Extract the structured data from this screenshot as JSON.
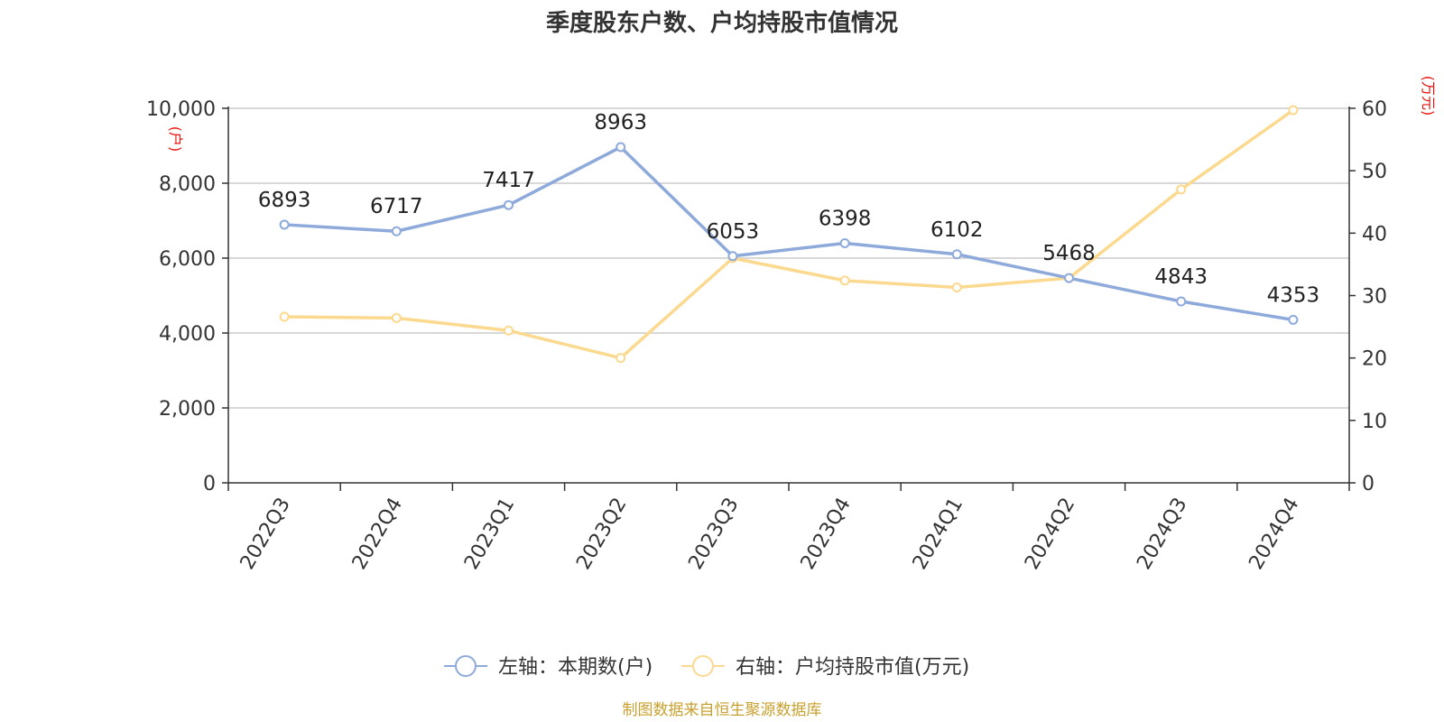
{
  "chart_data": {
    "type": "line",
    "title": "季度股东户数、户均持股市值情况",
    "categories": [
      "2022Q3",
      "2022Q4",
      "2023Q1",
      "2023Q2",
      "2023Q3",
      "2023Q4",
      "2024Q1",
      "2024Q2",
      "2024Q3",
      "2024Q4"
    ],
    "left_axis": {
      "unit": "(户)",
      "ylim": [
        0,
        10000
      ],
      "ticks": [
        "0",
        "2,000",
        "4,000",
        "6,000",
        "8,000",
        "10,000"
      ],
      "tick_values": [
        0,
        2000,
        4000,
        6000,
        8000,
        10000
      ]
    },
    "right_axis": {
      "unit": "(万元)",
      "ylim": [
        0,
        60
      ],
      "ticks": [
        "0",
        "10",
        "20",
        "30",
        "40",
        "50",
        "60"
      ],
      "tick_values": [
        0,
        10,
        20,
        30,
        40,
        50,
        60
      ]
    },
    "series": [
      {
        "name": "左轴：本期数(户)",
        "axis": "left",
        "color": "#8eaadb",
        "values": [
          6893,
          6717,
          7417,
          8963,
          6053,
          6398,
          6102,
          5468,
          4843,
          4353
        ],
        "labels": [
          "6893",
          "6717",
          "7417",
          "8963",
          "6053",
          "6398",
          "6102",
          "5468",
          "4843",
          "4353"
        ]
      },
      {
        "name": "右轴：户均持股市值(万元)",
        "axis": "right",
        "color": "#fbd98e",
        "values": [
          26.6,
          26.4,
          24.4,
          20.0,
          36.0,
          32.4,
          31.3,
          32.8,
          47.0,
          59.7
        ]
      }
    ],
    "grid": true,
    "legend_position": "bottom",
    "unit_color": "#e8120c"
  },
  "source_text": "制图数据来自恒生聚源数据库",
  "source_color": "#c8a130"
}
